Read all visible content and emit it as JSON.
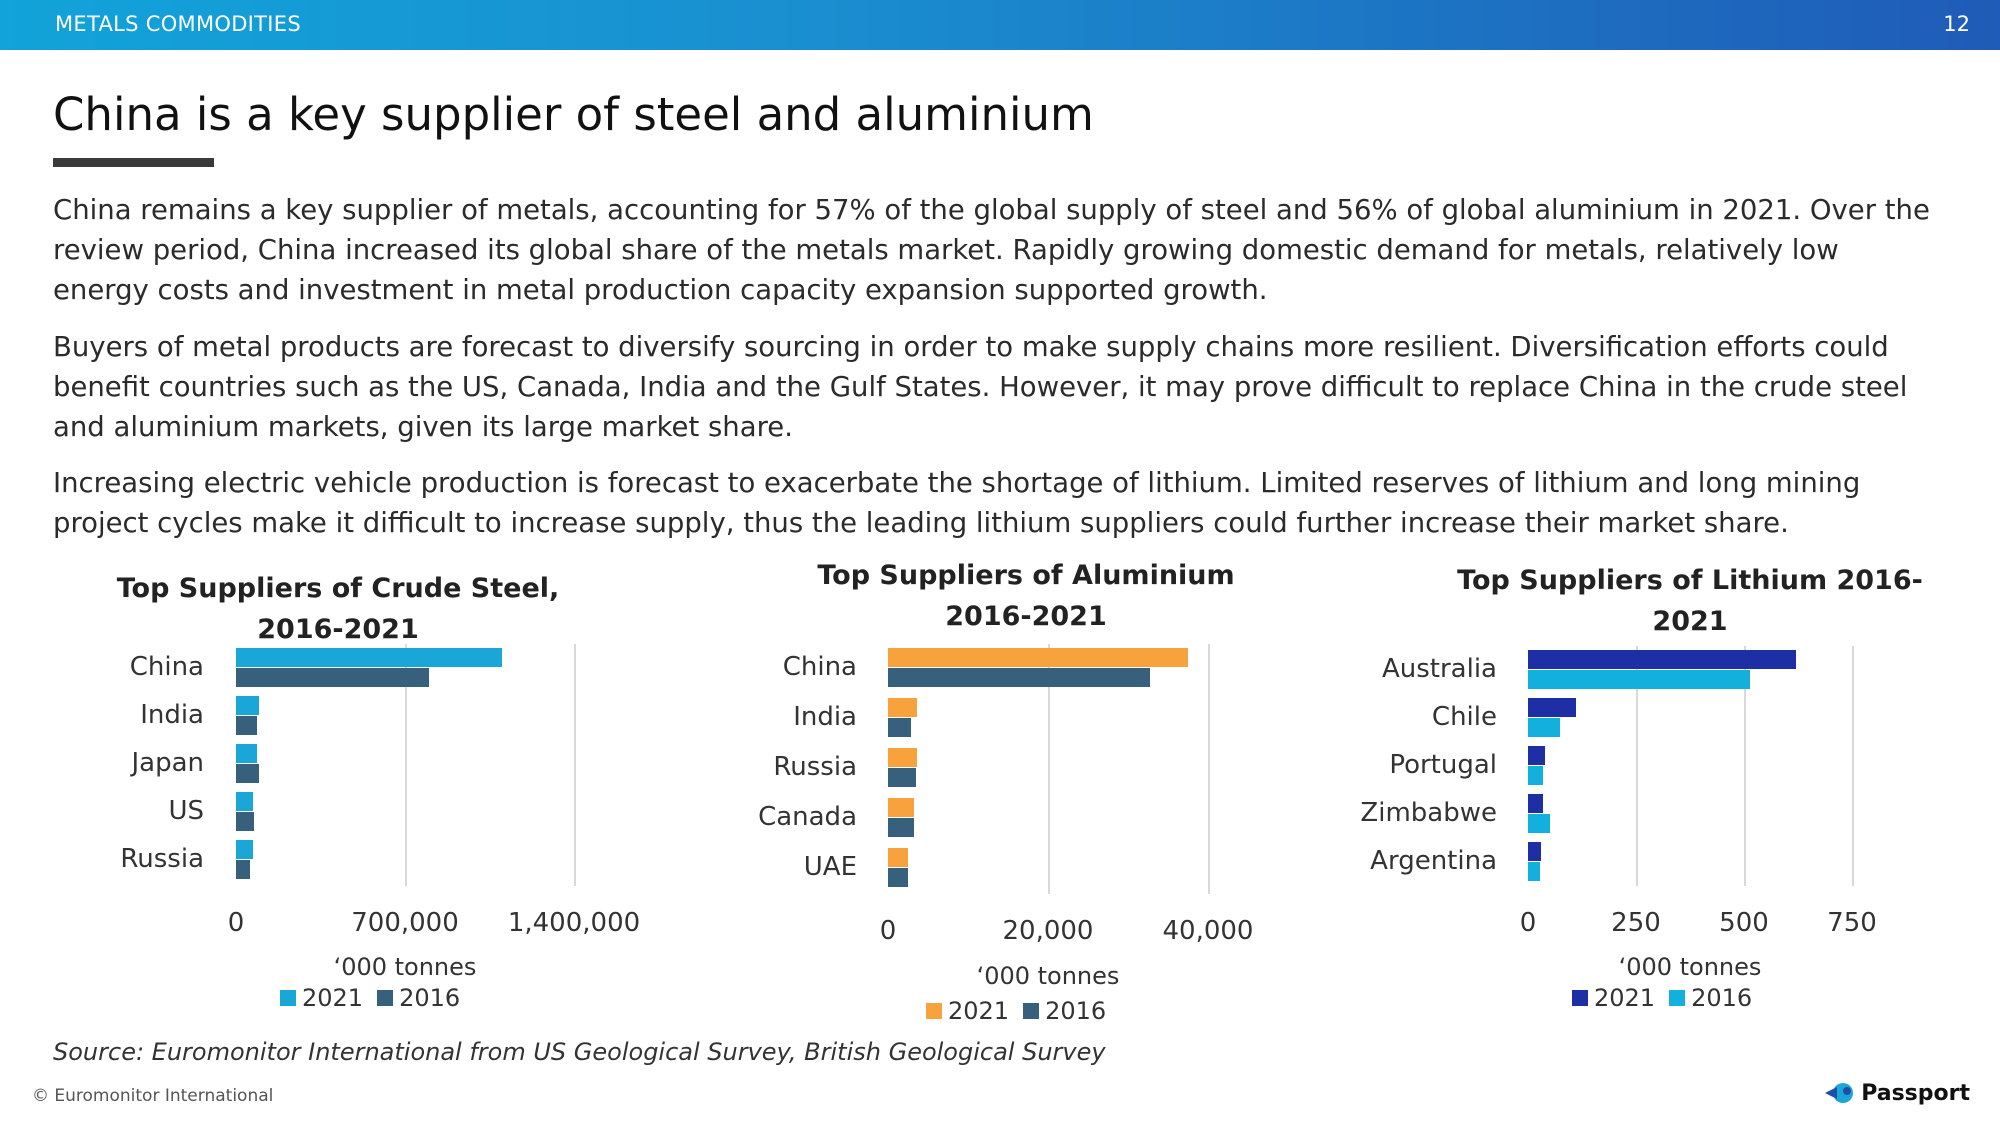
{
  "header": {
    "section": "METALS COMMODITIES",
    "page_number": "12"
  },
  "title": "China is a key supplier of steel and aluminium",
  "paragraphs": [
    "China remains a key supplier of metals, accounting for 57% of the global supply of steel and 56% of global aluminium in 2021. Over the review period, China increased its global share of the metals market. Rapidly growing domestic demand for metals, relatively low energy costs and investment in metal production capacity expansion supported growth.",
    "Buyers of metal products are forecast to diversify sourcing in order to make supply chains more resilient. Diversification efforts could benefit countries such as the US, Canada, India and the Gulf States. However, it may prove difficult to replace China in the crude steel and aluminium markets, given its large market share.",
    "Increasing electric vehicle production is forecast to exacerbate the shortage of lithium. Limited reserves of lithium and long mining project cycles make it difficult to increase supply, thus the leading lithium suppliers could further increase their market share."
  ],
  "source": "Source: Euromonitor International from US Geological Survey, British Geological Survey",
  "footer": {
    "copyright": "© Euromonitor International",
    "logo_text": "Passport"
  },
  "chart_data": [
    {
      "type": "bar",
      "orientation": "horizontal",
      "title_lines": [
        "Top Suppliers of Crude Steel,",
        "2016-2021"
      ],
      "categories": [
        "China",
        "India",
        "Japan",
        "US",
        "Russia"
      ],
      "series": [
        {
          "name": "2021",
          "color": "#1aa7d8",
          "values": [
            1100000,
            95000,
            85000,
            70000,
            70000
          ]
        },
        {
          "name": "2016",
          "color": "#37607d",
          "values": [
            800000,
            85000,
            95000,
            75000,
            60000
          ]
        }
      ],
      "xlim": [
        0,
        1400000
      ],
      "ticks": [
        0,
        700000,
        1400000
      ],
      "tick_labels": [
        "0",
        "700,000",
        "1,400,000"
      ],
      "xlabel": "‘000 tonnes",
      "legend_position": "bottom",
      "grid": true
    },
    {
      "type": "bar",
      "orientation": "horizontal",
      "title_lines": [
        "Top Suppliers of Aluminium",
        "2016-2021"
      ],
      "categories": [
        "China",
        "India",
        "Russia",
        "Canada",
        "UAE"
      ],
      "series": [
        {
          "name": "2021",
          "color": "#f7a23c",
          "values": [
            37500,
            3600,
            3600,
            3200,
            2500
          ]
        },
        {
          "name": "2016",
          "color": "#37607d",
          "values": [
            32800,
            2900,
            3500,
            3200,
            2500
          ]
        }
      ],
      "xlim": [
        0,
        40000
      ],
      "ticks": [
        0,
        20000,
        40000
      ],
      "tick_labels": [
        "0",
        "20,000",
        "40,000"
      ],
      "xlabel": "‘000 tonnes",
      "legend_position": "bottom",
      "grid": true
    },
    {
      "type": "bar",
      "orientation": "horizontal",
      "title_lines": [
        "Top Suppliers of Lithium 2016-",
        "2021"
      ],
      "categories": [
        "Australia",
        "Chile",
        "Portugal",
        "Zimbabwe",
        "Argentina"
      ],
      "series": [
        {
          "name": "2021",
          "color": "#1e2fa6",
          "values": [
            620,
            110,
            40,
            35,
            30
          ]
        },
        {
          "name": "2016",
          "color": "#14b0dd",
          "values": [
            515,
            75,
            35,
            50,
            28
          ]
        }
      ],
      "xlim": [
        0,
        750
      ],
      "ticks": [
        0,
        250,
        500,
        750
      ],
      "tick_labels": [
        "0",
        "250",
        "500",
        "750"
      ],
      "xlabel": "‘000 tonnes",
      "legend_position": "bottom",
      "grid": true
    }
  ]
}
